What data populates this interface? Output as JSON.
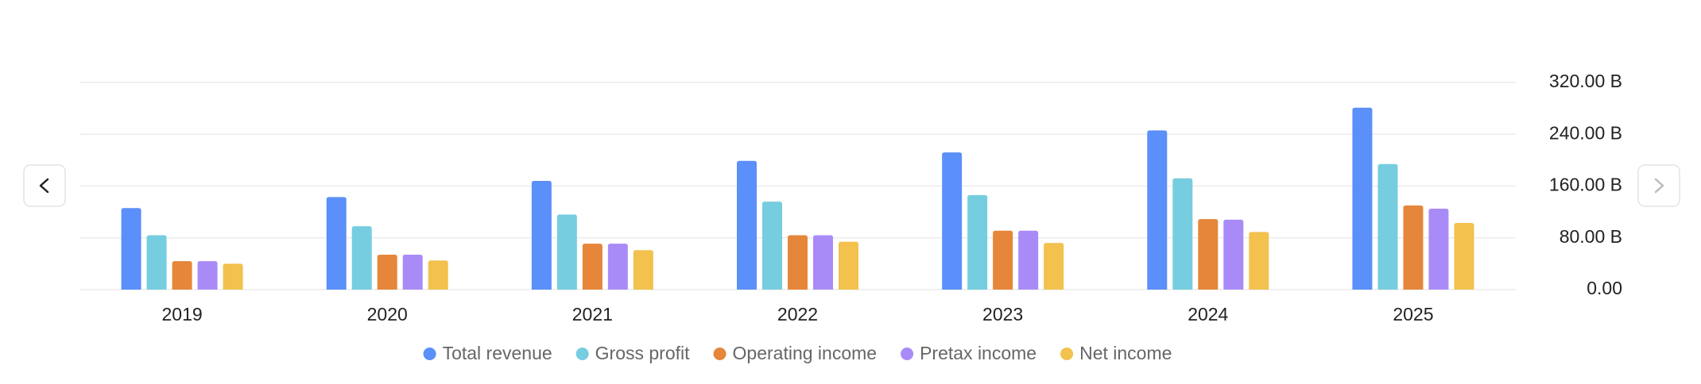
{
  "chart_data": {
    "type": "bar",
    "categories": [
      "2019",
      "2020",
      "2021",
      "2022",
      "2023",
      "2024",
      "2025"
    ],
    "series": [
      {
        "name": "Total revenue",
        "color": "#5b8ff9",
        "values": [
          126,
          143,
          168,
          199,
          212,
          246,
          281
        ]
      },
      {
        "name": "Gross profit",
        "color": "#76cddf",
        "values": [
          84,
          98,
          116,
          136,
          146,
          172,
          194
        ]
      },
      {
        "name": "Operating income",
        "color": "#e6863a",
        "values": [
          44,
          54,
          71,
          84,
          91,
          109,
          130
        ]
      },
      {
        "name": "Pretax income",
        "color": "#a98bf7",
        "values": [
          44,
          54,
          71,
          84,
          91,
          108,
          125
        ]
      },
      {
        "name": "Net income",
        "color": "#f2c14e",
        "values": [
          40,
          45,
          61,
          74,
          72,
          89,
          103
        ]
      }
    ],
    "ylim": [
      0,
      320
    ],
    "yticks": [
      {
        "value": 0,
        "label": "0.00"
      },
      {
        "value": 80,
        "label": "80.00 B"
      },
      {
        "value": 160,
        "label": "160.00 B"
      },
      {
        "value": 240,
        "label": "240.00 B"
      },
      {
        "value": 320,
        "label": "320.00 B"
      }
    ],
    "grid": true
  }
}
